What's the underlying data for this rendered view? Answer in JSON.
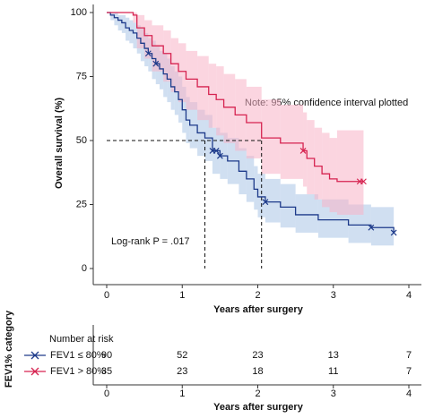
{
  "chart_data": {
    "type": "step",
    "ylabel": "Overall survival (%)",
    "xlabel": "Years after surgery",
    "xlim": [
      -0.2,
      4.2
    ],
    "ylim": [
      0,
      105
    ],
    "xticks": [
      0,
      1,
      2,
      3,
      4
    ],
    "yticks": [
      0,
      25,
      50,
      75,
      100
    ],
    "annotations": [
      "Note: 95% confidence interval plotted",
      "Log-rank P = .017"
    ],
    "median_level": 50,
    "median_times": [
      1.3,
      2.05
    ],
    "risk_table": {
      "title": "Number at risk",
      "ylabel": "FEV1% category"
    },
    "series": [
      {
        "name": "FEV1 ≤ 80%",
        "color": "#1d3a8a",
        "band_color": "#a9c4e6",
        "x": [
          0,
          0.05,
          0.1,
          0.15,
          0.2,
          0.25,
          0.3,
          0.35,
          0.4,
          0.45,
          0.5,
          0.55,
          0.6,
          0.65,
          0.7,
          0.75,
          0.8,
          0.85,
          0.9,
          0.95,
          1.0,
          1.05,
          1.1,
          1.2,
          1.3,
          1.4,
          1.5,
          1.6,
          1.75,
          1.85,
          1.95,
          2.0,
          2.1,
          2.3,
          2.5,
          2.8,
          3.2,
          3.5,
          3.8
        ],
        "values": [
          100,
          99,
          98,
          97,
          96,
          94,
          93,
          92,
          90,
          88,
          86,
          84,
          82,
          80,
          78,
          76,
          74,
          71,
          69,
          66,
          62,
          58,
          56,
          53,
          51,
          46,
          44,
          42,
          38,
          35,
          31,
          28,
          26,
          24,
          21,
          19,
          17,
          16,
          14
        ],
        "lower": [
          100,
          97,
          95,
          93,
          92,
          89,
          88,
          86,
          84,
          81,
          79,
          77,
          74,
          72,
          70,
          67,
          65,
          62,
          60,
          57,
          53,
          49,
          47,
          44,
          42,
          37,
          35,
          33,
          29,
          26,
          23,
          20,
          18,
          16,
          14,
          12,
          10,
          9,
          8
        ],
        "upper": [
          100,
          100,
          100,
          99,
          99,
          98,
          97,
          96,
          95,
          94,
          92,
          90,
          89,
          87,
          85,
          84,
          82,
          79,
          77,
          75,
          71,
          67,
          65,
          62,
          60,
          55,
          53,
          51,
          47,
          44,
          40,
          37,
          35,
          33,
          29,
          27,
          25,
          24,
          22
        ],
        "censored_x": [
          0.55,
          0.65,
          1.4,
          1.45,
          1.5,
          2.1,
          3.5,
          3.8
        ],
        "censored_values": [
          84,
          80,
          46,
          46,
          44,
          26,
          16,
          14
        ],
        "at_risk": [
          90,
          52,
          23,
          13,
          7
        ]
      },
      {
        "name": "FEV1 > 80%",
        "color": "#d62350",
        "band_color": "#f7b3c7",
        "x": [
          0,
          0.35,
          0.4,
          0.5,
          0.6,
          0.75,
          0.85,
          0.95,
          1.05,
          1.2,
          1.35,
          1.45,
          1.55,
          1.7,
          1.85,
          2.05,
          2.3,
          2.6,
          2.65,
          2.75,
          2.85,
          2.95,
          3.05,
          3.4
        ],
        "values": [
          100,
          99,
          94,
          91,
          87,
          84,
          80,
          77,
          74,
          71,
          68,
          66,
          63,
          60,
          57,
          51,
          49,
          46,
          43,
          40,
          37,
          35,
          34,
          34
        ],
        "lower": [
          100,
          96,
          86,
          82,
          77,
          73,
          69,
          65,
          62,
          58,
          55,
          52,
          49,
          46,
          43,
          37,
          35,
          32,
          29,
          27,
          24,
          22,
          21,
          21
        ],
        "upper": [
          100,
          100,
          99,
          97,
          95,
          93,
          90,
          88,
          85,
          83,
          80,
          79,
          76,
          74,
          71,
          66,
          64,
          61,
          58,
          55,
          53,
          51,
          54,
          54
        ],
        "censored_x": [
          2.6,
          3.35,
          3.4
        ],
        "censored_values": [
          46,
          34,
          34
        ],
        "at_risk": [
          35,
          23,
          18,
          11,
          7
        ]
      }
    ]
  }
}
